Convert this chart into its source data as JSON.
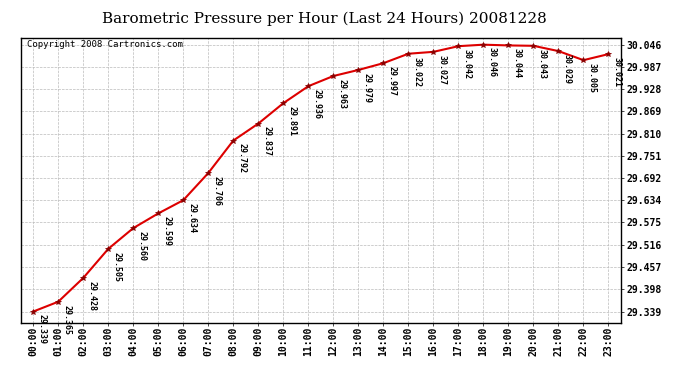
{
  "title": "Barometric Pressure per Hour (Last 24 Hours) 20081228",
  "copyright": "Copyright 2008 Cartronics.com",
  "hours": [
    "00:00",
    "01:00",
    "02:00",
    "03:00",
    "04:00",
    "05:00",
    "06:00",
    "07:00",
    "08:00",
    "09:00",
    "10:00",
    "11:00",
    "12:00",
    "13:00",
    "14:00",
    "15:00",
    "16:00",
    "17:00",
    "18:00",
    "19:00",
    "20:00",
    "21:00",
    "22:00",
    "23:00"
  ],
  "values": [
    29.339,
    29.365,
    29.428,
    29.505,
    29.56,
    29.599,
    29.634,
    29.706,
    29.792,
    29.837,
    29.891,
    29.936,
    29.963,
    29.979,
    29.997,
    30.022,
    30.027,
    30.042,
    30.046,
    30.044,
    30.043,
    30.029,
    30.005,
    30.021
  ],
  "yticks": [
    29.339,
    29.398,
    29.457,
    29.516,
    29.575,
    29.634,
    29.692,
    29.751,
    29.81,
    29.869,
    29.928,
    29.987,
    30.046
  ],
  "ymin": 29.31,
  "ymax": 30.065,
  "line_color": "#dd0000",
  "marker_color": "#880000",
  "bg_color": "#ffffff",
  "grid_color": "#bbbbbb",
  "title_fontsize": 11,
  "label_fontsize": 7,
  "annotation_fontsize": 6,
  "copyright_fontsize": 6.5
}
